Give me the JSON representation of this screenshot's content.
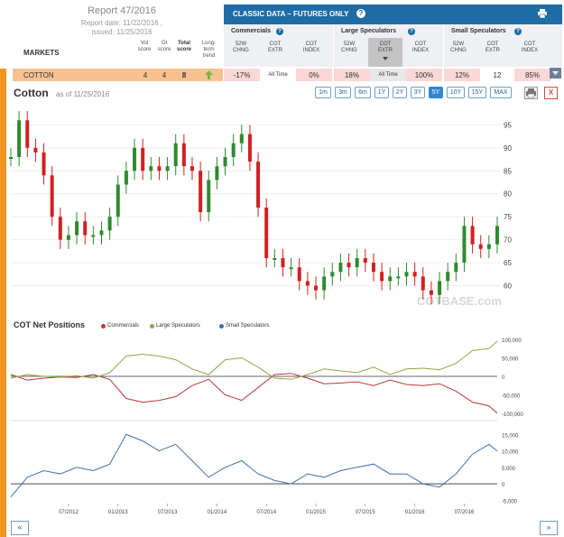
{
  "report": {
    "title": "Report 47/2016",
    "date": "Report date: 11/22/2016 ,",
    "issued": "issued: 11/25/2016",
    "markets_label": "MARKETS",
    "col_vol": "Vol score",
    "col_oi": "OI score",
    "col_total": "Total score",
    "col_trend": "Long-term trend"
  },
  "classic": {
    "title": "CLASSIC DATA – FUTURES ONLY",
    "q": "?",
    "groups": [
      {
        "title": "Commercials",
        "cols": [
          "52W CHNG",
          "COT EXTR",
          "COT INDEX"
        ]
      },
      {
        "title": "Large Speculators",
        "cols": [
          "52W CHNG",
          "COT EXTR",
          "COT INDEX"
        ]
      },
      {
        "title": "Small Speculators",
        "cols": [
          "52W CHNG",
          "COT EXTR",
          "COT INDEX"
        ]
      }
    ]
  },
  "row": {
    "name": "COTTON",
    "vol": "4",
    "oi": "4",
    "total": "8",
    "trend": "up-arrow-icon",
    "trend_color": "#7ab648",
    "comm_52w": "-17%",
    "comm_extr": "All Time",
    "comm_index": "0%",
    "lspec_52w": "18%",
    "lspec_extr": "All Time",
    "lspec_index": "100%",
    "sspec_52w": "12%",
    "sspec_extr": "12",
    "sspec_index": "85%"
  },
  "chart_header": {
    "title": "Cotton",
    "asof": "as of 11/25/2016",
    "ranges": [
      "1m",
      "3m",
      "6m",
      "1Y",
      "2Y",
      "3Y",
      "5Y",
      "10Y",
      "15Y",
      "MAX"
    ],
    "active_range": "5Y",
    "close": "X"
  },
  "cot_panel": {
    "title": "COT Net Positions",
    "legend": [
      {
        "name": "Commercials",
        "color": "#b73a3a"
      },
      {
        "name": "Large Speculators",
        "color": "#8ea747"
      },
      {
        "name": "Small Speculators",
        "color": "#3f6fae"
      }
    ]
  },
  "nav": {
    "prev": "«",
    "next": "»"
  },
  "watermark": "COTBASE.com",
  "colors": {
    "up": "#2e8b2e",
    "down": "#d22020",
    "accent": "#f39421",
    "brand": "#1f6ca6"
  },
  "chart_data": [
    {
      "type": "candlestick",
      "title": "Cotton",
      "x_ticks": [
        "07/2012",
        "01/2013",
        "07/2013",
        "01/2014",
        "07/2014",
        "01/2015",
        "07/2015",
        "01/2016",
        "07/2016"
      ],
      "y_ticks": [
        60,
        65,
        70,
        75,
        80,
        85,
        90,
        95
      ],
      "ylim": [
        55,
        99
      ],
      "close_series": [
        {
          "date": "2011-12",
          "value": 88
        },
        {
          "date": "2012-01",
          "value": 96
        },
        {
          "date": "2012-02",
          "value": 90
        },
        {
          "date": "2012-03",
          "value": 89
        },
        {
          "date": "2012-04",
          "value": 84
        },
        {
          "date": "2012-05",
          "value": 75
        },
        {
          "date": "2012-06",
          "value": 70
        },
        {
          "date": "2012-07",
          "value": 71
        },
        {
          "date": "2012-08",
          "value": 74
        },
        {
          "date": "2012-09",
          "value": 71
        },
        {
          "date": "2012-10",
          "value": 71
        },
        {
          "date": "2012-11",
          "value": 72
        },
        {
          "date": "2012-12",
          "value": 75
        },
        {
          "date": "2013-01",
          "value": 82
        },
        {
          "date": "2013-02",
          "value": 85
        },
        {
          "date": "2013-03",
          "value": 90
        },
        {
          "date": "2013-04",
          "value": 85
        },
        {
          "date": "2013-05",
          "value": 86
        },
        {
          "date": "2013-06",
          "value": 85
        },
        {
          "date": "2013-07",
          "value": 86
        },
        {
          "date": "2013-08",
          "value": 91
        },
        {
          "date": "2013-09",
          "value": 86
        },
        {
          "date": "2013-10",
          "value": 85
        },
        {
          "date": "2013-11",
          "value": 76
        },
        {
          "date": "2013-12",
          "value": 83
        },
        {
          "date": "2014-01",
          "value": 86
        },
        {
          "date": "2014-02",
          "value": 88
        },
        {
          "date": "2014-03",
          "value": 91
        },
        {
          "date": "2014-04",
          "value": 93
        },
        {
          "date": "2014-05",
          "value": 87
        },
        {
          "date": "2014-06",
          "value": 77
        },
        {
          "date": "2014-07",
          "value": 66
        },
        {
          "date": "2014-08",
          "value": 66
        },
        {
          "date": "2014-09",
          "value": 64
        },
        {
          "date": "2014-10",
          "value": 64
        },
        {
          "date": "2014-11",
          "value": 61
        },
        {
          "date": "2014-12",
          "value": 60
        },
        {
          "date": "2015-01",
          "value": 59
        },
        {
          "date": "2015-02",
          "value": 62
        },
        {
          "date": "2015-03",
          "value": 63
        },
        {
          "date": "2015-04",
          "value": 65
        },
        {
          "date": "2015-05",
          "value": 64
        },
        {
          "date": "2015-06",
          "value": 66
        },
        {
          "date": "2015-07",
          "value": 65
        },
        {
          "date": "2015-08",
          "value": 63
        },
        {
          "date": "2015-09",
          "value": 61
        },
        {
          "date": "2015-10",
          "value": 62
        },
        {
          "date": "2015-11",
          "value": 62
        },
        {
          "date": "2015-12",
          "value": 63
        },
        {
          "date": "2016-01",
          "value": 62
        },
        {
          "date": "2016-02",
          "value": 59
        },
        {
          "date": "2016-03",
          "value": 58
        },
        {
          "date": "2016-04",
          "value": 61
        },
        {
          "date": "2016-05",
          "value": 63
        },
        {
          "date": "2016-06",
          "value": 65
        },
        {
          "date": "2016-07",
          "value": 73
        },
        {
          "date": "2016-08",
          "value": 69
        },
        {
          "date": "2016-09",
          "value": 68
        },
        {
          "date": "2016-10",
          "value": 69
        },
        {
          "date": "2016-11",
          "value": 73
        }
      ]
    },
    {
      "type": "line",
      "title": "COT Net Positions",
      "y_ticks": [
        "-100,000",
        "-50,000",
        "0",
        "50,000",
        "100,000"
      ],
      "ylim": [
        -110000,
        110000
      ],
      "x": [
        "2011-12",
        "2012-02",
        "2012-04",
        "2012-06",
        "2012-08",
        "2012-10",
        "2012-12",
        "2013-02",
        "2013-04",
        "2013-06",
        "2013-08",
        "2013-10",
        "2013-12",
        "2014-02",
        "2014-04",
        "2014-06",
        "2014-08",
        "2014-10",
        "2014-12",
        "2015-02",
        "2015-04",
        "2015-06",
        "2015-08",
        "2015-10",
        "2015-12",
        "2016-02",
        "2016-04",
        "2016-06",
        "2016-08",
        "2016-10",
        "2016-11"
      ],
      "series": [
        {
          "name": "Commercials",
          "values": [
            5000,
            -10000,
            -5000,
            -2000,
            -3000,
            5000,
            -8000,
            -60000,
            -70000,
            -65000,
            -55000,
            -25000,
            -8000,
            -50000,
            -65000,
            -30000,
            5000,
            8000,
            -5000,
            -20000,
            -18000,
            -15000,
            -25000,
            -10000,
            -22000,
            -25000,
            -20000,
            -40000,
            -70000,
            -80000,
            -100000
          ]
        },
        {
          "name": "Large Speculators",
          "values": [
            -5000,
            5000,
            0,
            -2000,
            2000,
            -5000,
            10000,
            55000,
            60000,
            55000,
            45000,
            20000,
            5000,
            45000,
            50000,
            25000,
            -5000,
            -8000,
            5000,
            20000,
            15000,
            10000,
            25000,
            5000,
            20000,
            22000,
            18000,
            35000,
            70000,
            75000,
            95000
          ]
        }
      ]
    },
    {
      "type": "line",
      "y_ticks": [
        "-5,000",
        "0",
        "5,000",
        "10,000",
        "15,000"
      ],
      "ylim": [
        -6000,
        17000
      ],
      "x": [
        "2011-12",
        "2012-02",
        "2012-04",
        "2012-06",
        "2012-08",
        "2012-10",
        "2012-12",
        "2013-02",
        "2013-04",
        "2013-06",
        "2013-08",
        "2013-10",
        "2013-12",
        "2014-02",
        "2014-04",
        "2014-06",
        "2014-08",
        "2014-10",
        "2014-12",
        "2015-02",
        "2015-04",
        "2015-06",
        "2015-08",
        "2015-10",
        "2015-12",
        "2016-02",
        "2016-04",
        "2016-06",
        "2016-08",
        "2016-10",
        "2016-11"
      ],
      "series": [
        {
          "name": "Small Speculators",
          "values": [
            -4000,
            2000,
            4000,
            3000,
            5000,
            4000,
            6000,
            15000,
            13000,
            10000,
            12000,
            7000,
            2000,
            5000,
            7000,
            3000,
            1000,
            0,
            3000,
            2000,
            4000,
            5000,
            6000,
            3000,
            3000,
            0,
            -1000,
            3000,
            9000,
            12000,
            10000
          ]
        }
      ]
    }
  ]
}
